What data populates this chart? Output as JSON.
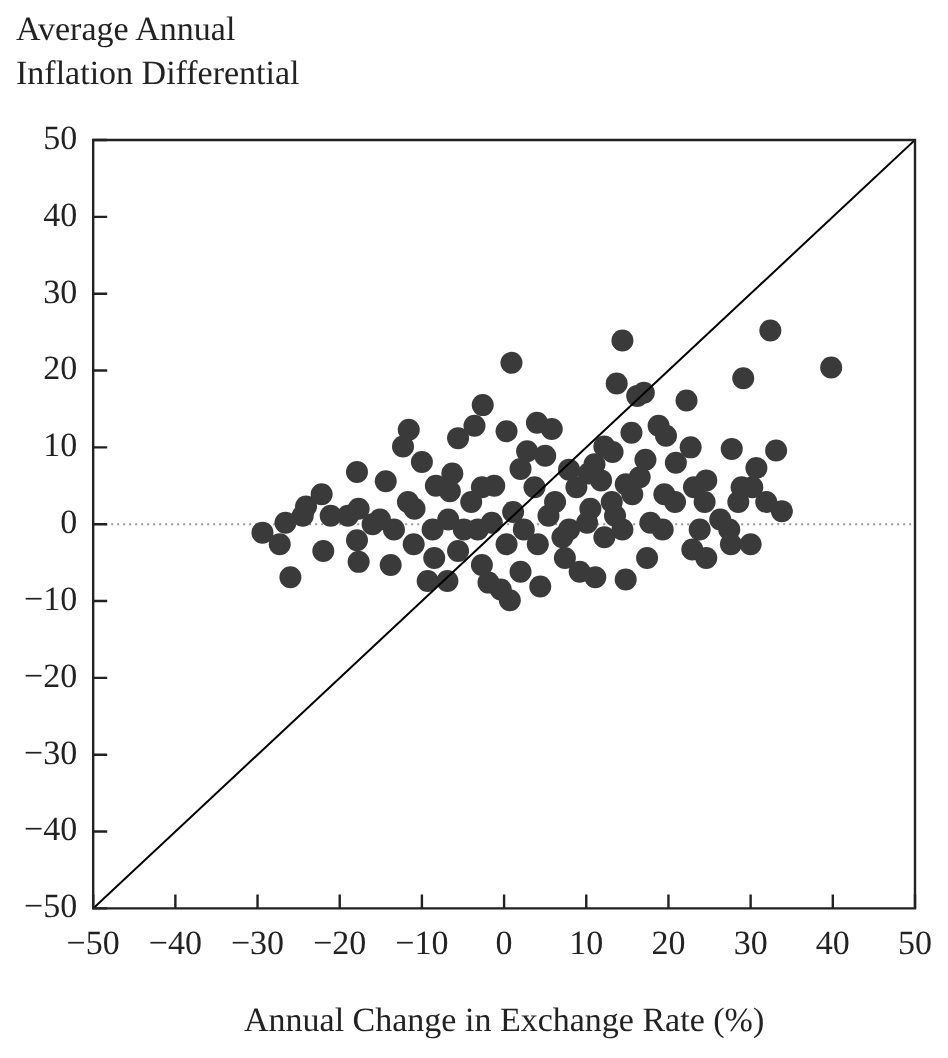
{
  "chart_data": {
    "type": "scatter",
    "ylabel": "Average Annual Inflation Differential",
    "xlabel": "Annual Change in Exchange Rate (%)",
    "xlim": [
      -50,
      50
    ],
    "xticks": [
      -50,
      -40,
      -30,
      -20,
      -10,
      0,
      10,
      20,
      30,
      40,
      50
    ],
    "ylim": [
      -50,
      50
    ],
    "yticks": [
      -50,
      -40,
      -30,
      -20,
      -10,
      0,
      10,
      20,
      30,
      40,
      50
    ],
    "marker": "circle",
    "legend": false,
    "ref_lines": [
      {
        "axis": "y",
        "value": 0,
        "line_style": "dotted",
        "color": "#999999"
      }
    ],
    "series": [
      {
        "type": "line",
        "color": "#000000",
        "marker": "none",
        "x": [
          -50,
          50
        ],
        "values": [
          -50,
          50
        ]
      },
      {
        "color": "#3a3a3a",
        "x": [
          14.4,
          32.4,
          39.8,
          29.1,
          0.9,
          13.7,
          22.2,
          16.2,
          17,
          -2.6,
          -3.6,
          -5.6,
          -11.6,
          -12.3,
          -10,
          -17.9,
          -14.4,
          0.3,
          4,
          5.8,
          2.8,
          5,
          12.2,
          13.2,
          15.5,
          18.8,
          19.7,
          22.7,
          27.7,
          33.1,
          30.7,
          20.9,
          17.2,
          11,
          7.9,
          2,
          -1.2,
          -6.3,
          -8.3,
          -22.2,
          -24.1,
          -26.6,
          -29.4,
          -27.3,
          -26,
          -22,
          -19,
          -17.9,
          -17.7,
          -16,
          -13.8,
          -13.4,
          -11,
          -11.7,
          -8.7,
          -8.5,
          -9.3,
          -6.9,
          -6.8,
          -5.6,
          -4,
          -3.2,
          -2.7,
          -1.9,
          0.7,
          -0.4,
          2,
          4.4,
          2.4,
          1.1,
          3.7,
          5.4,
          7.1,
          7.4,
          9.2,
          11.1,
          8.8,
          10.5,
          11.8,
          13.1,
          14.4,
          14.8,
          15.6,
          17.4,
          17.8,
          19.3,
          20.8,
          23.1,
          22.9,
          24.6,
          24.4,
          26.3,
          27.4,
          28.5,
          28.9,
          30,
          31.9,
          33.8,
          27.6,
          19.5,
          16.5,
          14.8,
          13.5,
          12.2,
          10.1,
          7.9,
          4.1,
          0.3,
          -1.5,
          -4.9,
          -10.9,
          -15.1,
          -17.7,
          -2.7,
          6.2,
          10.3,
          -6.6,
          -21.1,
          -24.5,
          24.6,
          30.2,
          23.8
        ],
        "values": [
          23.9,
          25.2,
          20.4,
          19,
          21,
          18.3,
          16.1,
          16.7,
          17.1,
          15.5,
          12.8,
          11.2,
          12.3,
          10.1,
          8.1,
          6.8,
          5.6,
          12.1,
          13.2,
          12.4,
          9.5,
          8.9,
          10.1,
          9.4,
          11.9,
          12.8,
          11.5,
          10,
          9.8,
          9.6,
          7.3,
          8,
          8.4,
          7.8,
          7.1,
          7.2,
          5,
          6.6,
          5,
          3.9,
          2.3,
          0.2,
          -1.1,
          -2.6,
          -6.9,
          -3.5,
          1.1,
          -2.1,
          -4.9,
          0,
          -5.3,
          -0.7,
          -2.6,
          2.9,
          -0.7,
          -4.4,
          -7.4,
          -7.4,
          0.6,
          -3.5,
          2.9,
          -0.7,
          -5.3,
          -7.6,
          -9.9,
          -8.5,
          -6.2,
          -8.1,
          -0.7,
          1.6,
          4.8,
          1.1,
          -1.7,
          -4.4,
          -6.2,
          -6.9,
          4.8,
          2,
          5.7,
          2.9,
          -0.7,
          -7.2,
          3.9,
          -4.4,
          0.2,
          -0.7,
          2.9,
          4.8,
          -3.3,
          -4.4,
          2.9,
          0.6,
          -0.7,
          2.9,
          4.8,
          -2.6,
          2.9,
          1.7,
          -2.6,
          3.9,
          6.1,
          5.2,
          1.1,
          -1.7,
          0.2,
          -0.7,
          -2.6,
          -2.6,
          0.2,
          -0.7,
          2,
          0.6,
          2,
          4.8,
          2.9,
          6.6,
          4.3,
          1.1,
          1.1,
          5.7,
          4.8,
          -0.7
        ]
      }
    ]
  }
}
